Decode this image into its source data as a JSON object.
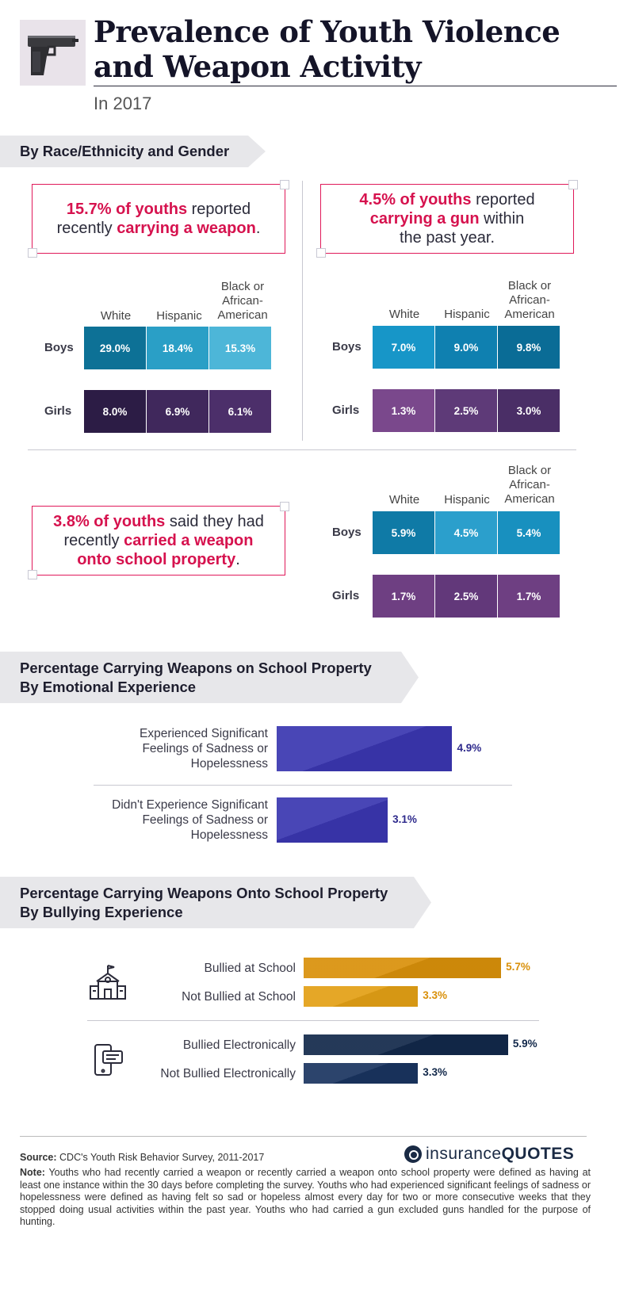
{
  "header": {
    "title_line1": "Prevalence of Youth Violence",
    "title_line2": "and Weapon Activity",
    "subtitle": "In 2017"
  },
  "section1": {
    "banner": "By Race/Ethnicity and Gender",
    "callouts": {
      "weapon": {
        "hl1": "15.7% of youths",
        "t1": " reported",
        "t2": "recently ",
        "hl2": "carrying a weapon",
        "t3": "."
      },
      "gun": {
        "hl1": "4.5% of youths",
        "t1": " reported",
        "hl2": "carrying a gun",
        "t2": " within",
        "t3": "the past year."
      },
      "school": {
        "hl1": "3.8% of youths",
        "t1": " said they had",
        "t2": "recently ",
        "hl2": "carried a weapon",
        "hl3": "onto school property",
        "t3": "."
      }
    },
    "columns": [
      "White",
      "Hispanic",
      "Black or African-American"
    ],
    "rows": [
      "Boys",
      "Girls"
    ]
  },
  "section2": {
    "banner_line1": "Percentage Carrying Weapons on School Property",
    "banner_line2": "By Emotional Experience"
  },
  "section3": {
    "banner_line1": "Percentage Carrying Weapons Onto School Property",
    "banner_line2": "By Bullying Experience"
  },
  "chart_data": [
    {
      "type": "table",
      "title": "15.7% of youths reported recently carrying a weapon.",
      "categories": [
        "White",
        "Hispanic",
        "Black or African-American"
      ],
      "series": [
        {
          "name": "Boys",
          "values": [
            "29.0%",
            "18.4%",
            "15.3%"
          ],
          "colors": [
            "#0d7196",
            "#2a9fc6",
            "#4db6d8"
          ]
        },
        {
          "name": "Girls",
          "values": [
            "8.0%",
            "6.9%",
            "6.1%"
          ],
          "colors": [
            "#2c1c45",
            "#40285c",
            "#4c2f6a"
          ]
        }
      ]
    },
    {
      "type": "table",
      "title": "4.5% of youths reported carrying a gun within the past year.",
      "categories": [
        "White",
        "Hispanic",
        "Black or African-American"
      ],
      "series": [
        {
          "name": "Boys",
          "values": [
            "7.0%",
            "9.0%",
            "9.8%"
          ],
          "colors": [
            "#1796c8",
            "#0f80b0",
            "#0a6c96"
          ]
        },
        {
          "name": "Girls",
          "values": [
            "1.3%",
            "2.5%",
            "3.0%"
          ],
          "colors": [
            "#7a488c",
            "#5e3a78",
            "#4a2e66"
          ]
        }
      ]
    },
    {
      "type": "table",
      "title": "3.8% of youths said they had recently carried a weapon onto school property.",
      "categories": [
        "White",
        "Hispanic",
        "Black or African-American"
      ],
      "series": [
        {
          "name": "Boys",
          "values": [
            "5.9%",
            "4.5%",
            "5.4%"
          ],
          "colors": [
            "#0f7aa6",
            "#2b9fcc",
            "#1890bf"
          ]
        },
        {
          "name": "Girls",
          "values": [
            "1.7%",
            "2.5%",
            "1.7%"
          ],
          "colors": [
            "#6e3f82",
            "#62387a",
            "#6e3f82"
          ]
        }
      ]
    },
    {
      "type": "bar",
      "title": "Percentage Carrying Weapons on School Property By Emotional Experience",
      "categories": [
        "Experienced Significant Feelings of Sadness or Hopelessness",
        "Didn't Experience Significant Feelings of Sadness or Hopelessness"
      ],
      "values": [
        4.9,
        3.1
      ],
      "labels": [
        "4.9%",
        "3.1%"
      ],
      "color": "#3a36b0",
      "label_color": "#2e2a8c"
    },
    {
      "type": "bar",
      "title": "Percentage Carrying Weapons Onto School Property By Bullying Experience",
      "categories": [
        "Bullied at School",
        "Not Bullied at School",
        "Bullied Electronically",
        "Not Bullied Electronically"
      ],
      "values": [
        5.7,
        3.3,
        5.9,
        3.3
      ],
      "labels": [
        "5.7%",
        "3.3%",
        "5.9%",
        "3.3%"
      ],
      "colors": [
        "#d9900a",
        "#e3a015",
        "#12284a",
        "#1a3460"
      ],
      "label_colors": [
        "#d9900a",
        "#d9900a",
        "#12284a",
        "#12284a"
      ]
    }
  ],
  "footer": {
    "source_label": "Source:",
    "source_text": " CDC's Youth Risk Behavior Survey, 2011-2017",
    "note_label": "Note:",
    "note_text": " Youths who had recently carried a weapon or recently carried a weapon onto school property were defined as having at least one instance within the 30 days before completing the survey. Youths who had experienced significant feelings of sadness or hopelessness were defined as having felt so sad or hopeless almost every day for two or more consecutive weeks that they stopped doing usual activities within the past year. Youths who had carried a gun excluded guns handled for the purpose of hunting.",
    "brand_light": "insurance",
    "brand_bold": "QUOTES"
  },
  "icons": [
    "pistol-icon",
    "school-building-icon",
    "phone-chat-icon"
  ]
}
